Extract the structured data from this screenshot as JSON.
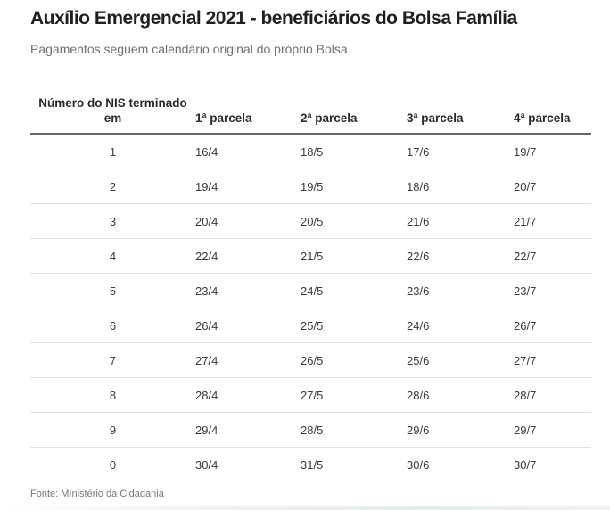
{
  "header": {
    "title": "Auxílio Emergencial 2021 - beneficiários do Bolsa Família",
    "subtitle": "Pagamentos seguem calendário original do próprio Bolsa"
  },
  "table": {
    "columns": [
      "Número do NIS terminado em",
      "1ª parcela",
      "2ª parcela",
      "3ª parcela",
      "4ª parcela"
    ],
    "rows": [
      [
        "1",
        "16/4",
        "18/5",
        "17/6",
        "19/7"
      ],
      [
        "2",
        "19/4",
        "19/5",
        "18/6",
        "20/7"
      ],
      [
        "3",
        "20/4",
        "20/5",
        "21/6",
        "21/7"
      ],
      [
        "4",
        "22/4",
        "21/5",
        "22/6",
        "22/7"
      ],
      [
        "5",
        "23/4",
        "24/5",
        "23/6",
        "23/7"
      ],
      [
        "6",
        "26/4",
        "25/5",
        "24/6",
        "26/7"
      ],
      [
        "7",
        "27/4",
        "26/5",
        "25/6",
        "27/7"
      ],
      [
        "8",
        "28/4",
        "27/5",
        "28/6",
        "28/7"
      ],
      [
        "9",
        "29/4",
        "28/5",
        "29/6",
        "29/7"
      ],
      [
        "0",
        "30/4",
        "31/5",
        "30/6",
        "30/7"
      ]
    ]
  },
  "footer": {
    "source": "Fonte: MInistério da Cidadania"
  }
}
